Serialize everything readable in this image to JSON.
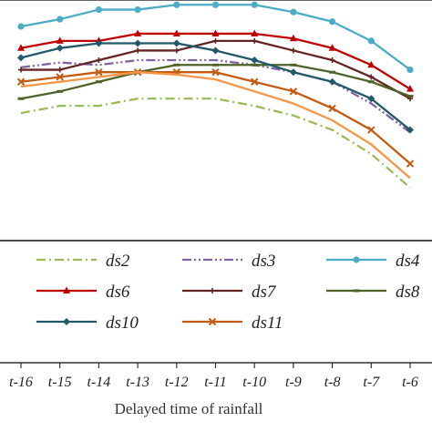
{
  "chart_data": {
    "type": "line",
    "xlabel": "Delayed time of rainfall",
    "ylabel": "",
    "categories": [
      "t-16",
      "t-15",
      "t-14",
      "t-13",
      "t-12",
      "t-11",
      "t-10",
      "t-9",
      "t-8",
      "t-7",
      "t-6"
    ],
    "y_range": [
      0,
      100
    ],
    "grid": false,
    "legend_placement": "bottom",
    "series": [
      {
        "name": "ds2",
        "color": "#9bbb59",
        "style": "dashdot",
        "marker": "none",
        "values": [
          53,
          56,
          56,
          59,
          59,
          59,
          56,
          52,
          46,
          36,
          22
        ]
      },
      {
        "name": "ds3",
        "color": "#8064a2",
        "style": "dashdotdot",
        "marker": "none",
        "values": [
          72,
          74,
          73,
          75,
          75,
          75,
          73,
          70,
          66,
          57,
          45
        ]
      },
      {
        "name": "ds4",
        "color": "#4bacc6",
        "style": "solid",
        "marker": "circle",
        "values": [
          89,
          92,
          96,
          96,
          98,
          98,
          98,
          95,
          91,
          83,
          71
        ]
      },
      {
        "name": "ds6",
        "color": "#c00000",
        "style": "solid",
        "marker": "triangle",
        "values": [
          80,
          83,
          83,
          86,
          86,
          86,
          86,
          84,
          80,
          73,
          63
        ]
      },
      {
        "name": "ds7",
        "color": "#632423",
        "style": "solid",
        "marker": "plus",
        "values": [
          71,
          71,
          75,
          79,
          79,
          83,
          83,
          79,
          75,
          68,
          59
        ]
      },
      {
        "name": "ds8",
        "color": "#4f6228",
        "style": "solid",
        "marker": "dash",
        "values": [
          59,
          62,
          66,
          70,
          73,
          73,
          73,
          73,
          70,
          66,
          60
        ]
      },
      {
        "name": "ds10",
        "color": "#215968",
        "style": "solid",
        "marker": "diamond",
        "values": [
          76,
          80,
          82,
          82,
          82,
          79,
          75,
          70,
          66,
          59,
          46
        ]
      },
      {
        "name": "ds11",
        "color": "#c55a11",
        "style": "solid",
        "marker": "x",
        "values": [
          66,
          68,
          70,
          70,
          70,
          70,
          66,
          62,
          55,
          46,
          32
        ]
      },
      {
        "name": "",
        "color": "#f79646",
        "style": "solid",
        "marker": "none",
        "values": [
          64,
          66,
          68,
          70,
          69,
          67,
          62,
          57,
          50,
          40,
          26
        ]
      }
    ]
  }
}
